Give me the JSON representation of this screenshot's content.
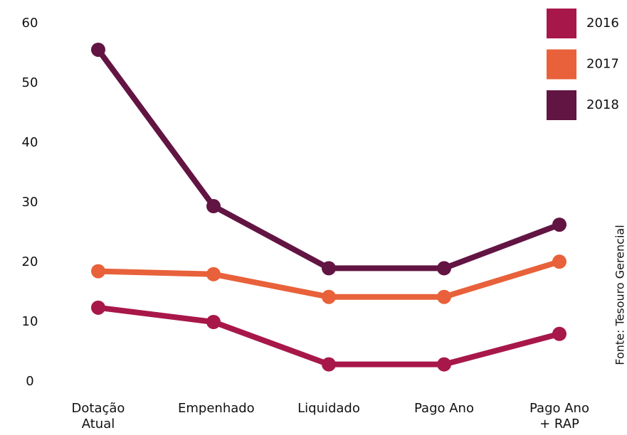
{
  "chart_data": {
    "type": "line",
    "categories": [
      "Dotação Atual",
      "Empenhado",
      "Liquidado",
      "Pago Ano",
      "Pago Ano + RAP"
    ],
    "series": [
      {
        "name": "2016",
        "color": "#a8174a",
        "values": [
          12.4,
          10.0,
          2.9,
          2.9,
          8.0
        ]
      },
      {
        "name": "2017",
        "color": "#e8613a",
        "values": [
          18.5,
          18.0,
          14.2,
          14.2,
          20.1
        ]
      },
      {
        "name": "2018",
        "color": "#621442",
        "values": [
          55.6,
          29.4,
          19.0,
          19.0,
          26.3
        ]
      }
    ],
    "ylim": [
      0,
      60
    ],
    "yticks": [
      0,
      10,
      20,
      30,
      40,
      50,
      60
    ],
    "grid": false,
    "legend": "top-right",
    "annotations": [
      "Fonte: Tesouro Gerencial"
    ]
  }
}
